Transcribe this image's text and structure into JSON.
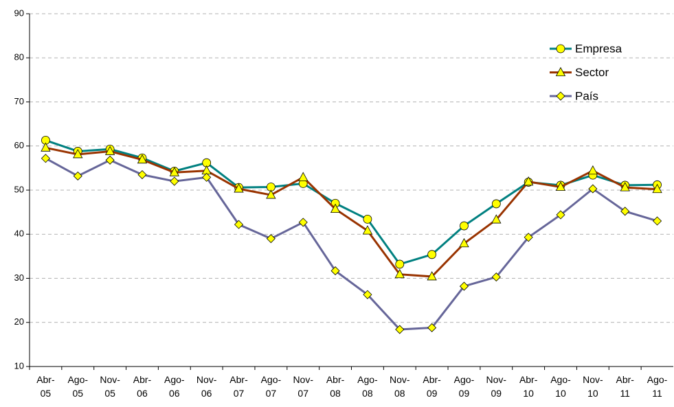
{
  "chart_data": {
    "type": "line",
    "categories": [
      "Abr-05",
      "Ago-05",
      "Nov-05",
      "Abr-06",
      "Ago-06",
      "Nov-06",
      "Abr-07",
      "Ago-07",
      "Nov-07",
      "Abr-08",
      "Ago-08",
      "Nov-08",
      "Abr-09",
      "Ago-09",
      "Nov-09",
      "Abr-10",
      "Ago-10",
      "Nov-10",
      "Abr-11",
      "Ago-11"
    ],
    "series": [
      {
        "name": "Empresa",
        "color": "#008080",
        "marker": "circle",
        "values": [
          61.3,
          58.8,
          59.3,
          57.3,
          54.3,
          56.2,
          50.6,
          50.7,
          51.5,
          47.0,
          43.4,
          33.2,
          35.4,
          41.9,
          46.9,
          51.8,
          51.1,
          53.4,
          51.1,
          51.2
        ]
      },
      {
        "name": "Sector",
        "color": "#993300",
        "marker": "triangle",
        "values": [
          59.6,
          58.1,
          58.8,
          56.9,
          54.0,
          54.4,
          50.3,
          48.9,
          52.9,
          45.7,
          40.8,
          30.9,
          30.4,
          37.9,
          43.3,
          51.9,
          50.7,
          54.4,
          50.6,
          50.2
        ]
      },
      {
        "name": "País",
        "color": "#666699",
        "marker": "diamond",
        "values": [
          57.2,
          53.2,
          56.8,
          53.5,
          52.0,
          52.9,
          42.2,
          39.0,
          42.7,
          31.7,
          26.3,
          18.4,
          18.8,
          28.2,
          30.3,
          39.3,
          44.4,
          50.3,
          45.2,
          43.0
        ]
      }
    ],
    "ylim": [
      10,
      90
    ],
    "yticks": [
      10,
      20,
      30,
      40,
      50,
      60,
      70,
      80,
      90
    ],
    "grid": true,
    "legend": "top-right",
    "marker_fill": "#ffff00"
  }
}
